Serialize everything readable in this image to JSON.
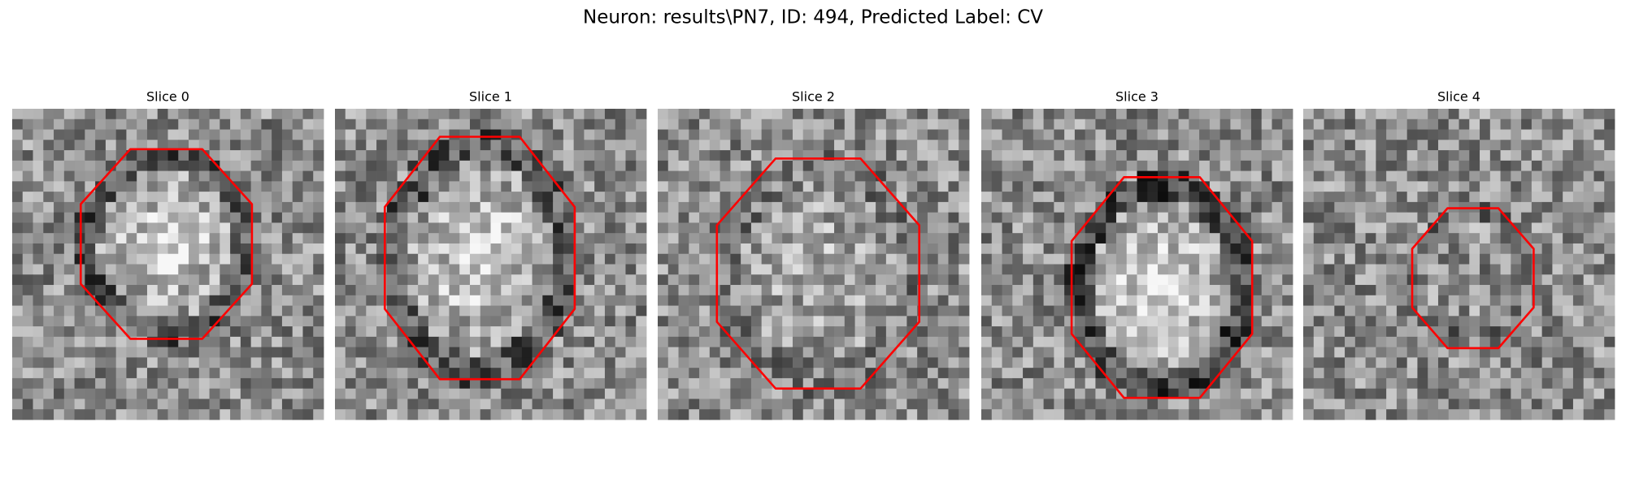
{
  "title": "Neuron: results\\PN7, ID: 494, Predicted Label: CV",
  "panels": [
    {
      "title": "Slice 0"
    },
    {
      "title": "Slice 1"
    },
    {
      "title": "Slice 2"
    },
    {
      "title": "Slice 3"
    },
    {
      "title": "Slice 4"
    }
  ]
}
